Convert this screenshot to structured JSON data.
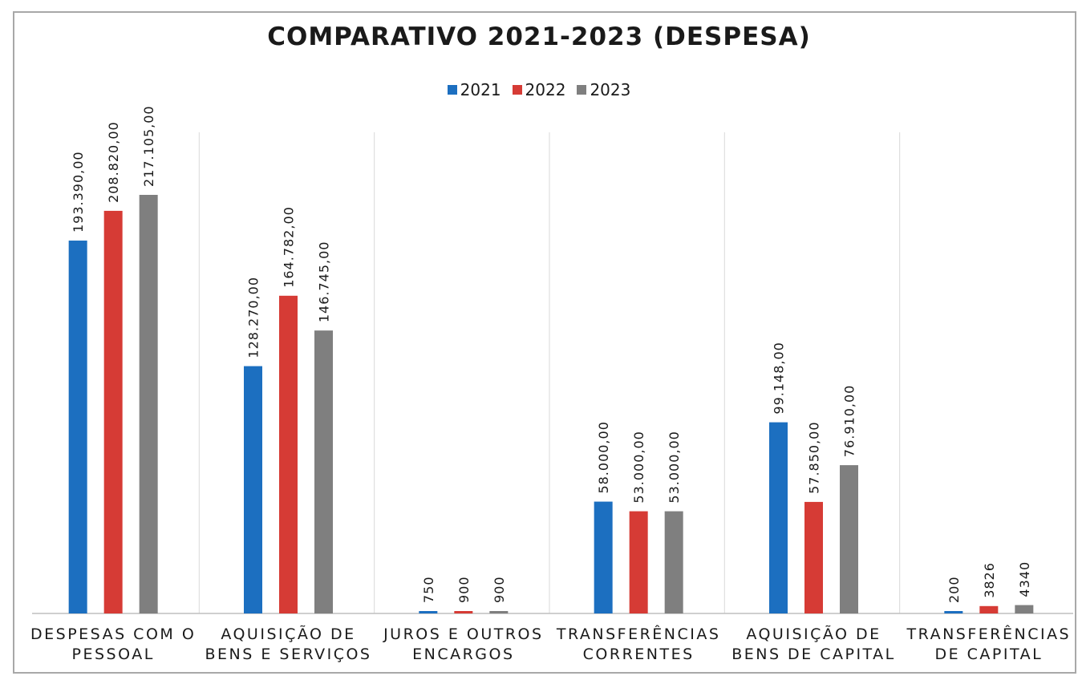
{
  "chart_data": {
    "type": "bar",
    "title": "COMPARATIVO  2021-2023 (DESPESA)",
    "legend_position": "top",
    "grid": false,
    "xlabel": "",
    "ylabel": "",
    "ylim": [
      0,
      230000
    ],
    "categories": [
      [
        "DESPESAS COM O",
        "PESSOAL"
      ],
      [
        "AQUISIÇÃO DE",
        "BENS E SERVIÇOS"
      ],
      [
        "JUROS E OUTROS",
        "ENCARGOS"
      ],
      [
        "TRANSFERÊNCIAS",
        "CORRENTES"
      ],
      [
        "AQUISIÇÃO DE",
        "BENS DE CAPITAL"
      ],
      [
        "TRANSFERÊNCIAS",
        "DE CAPITAL"
      ]
    ],
    "series": [
      {
        "name": "2021",
        "color": "#1c6fc0",
        "values": [
          193390,
          128270,
          750,
          58000,
          99148,
          200
        ],
        "labels": [
          "193.390,00",
          "128.270,00",
          "750",
          "58.000,00",
          "99.148,00",
          "200"
        ]
      },
      {
        "name": "2022",
        "color": "#d63b35",
        "values": [
          208820,
          164782,
          900,
          53000,
          57850,
          3826
        ],
        "labels": [
          "208.820,00",
          "164.782,00",
          "900",
          "53.000,00",
          "57.850,00",
          "3826"
        ]
      },
      {
        "name": "2023",
        "color": "#7f7f7f",
        "values": [
          217105,
          146745,
          900,
          53000,
          76910,
          4340
        ],
        "labels": [
          "217.105,00",
          "146.745,00",
          "900",
          "53.000,00",
          "76.910,00",
          "4340"
        ]
      }
    ]
  }
}
